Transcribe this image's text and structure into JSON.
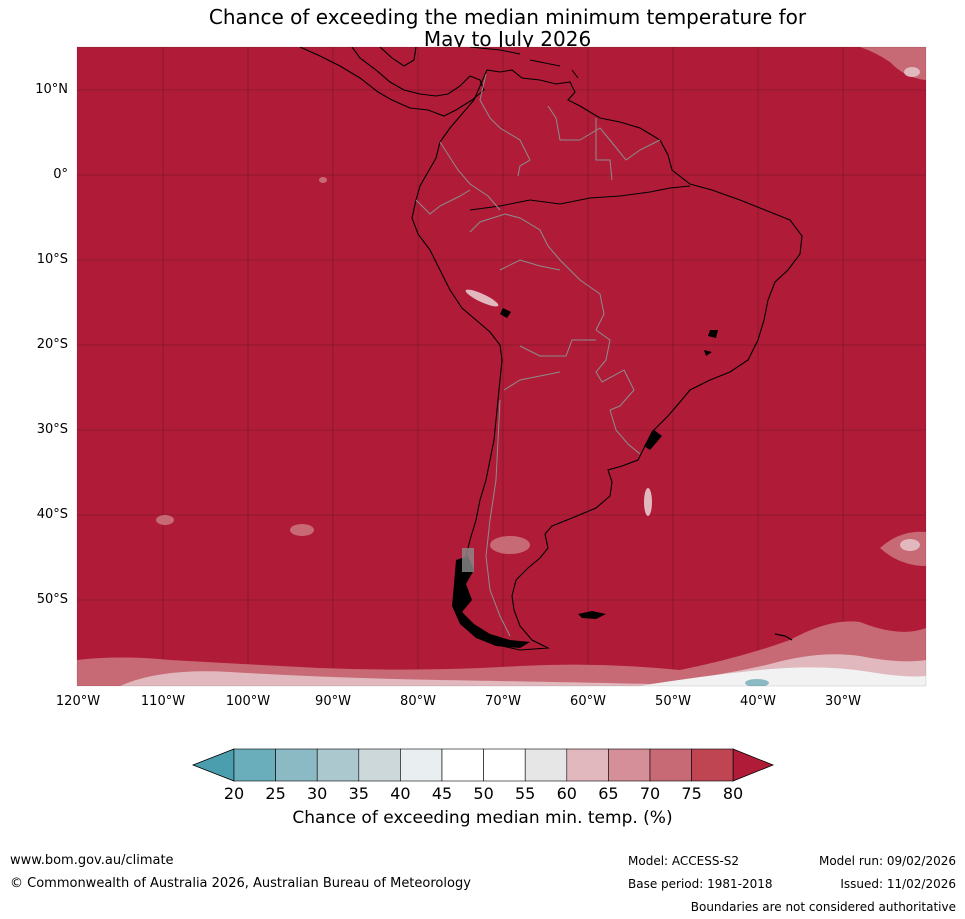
{
  "title": {
    "line1": "Chance of exceeding the median minimum temperature for",
    "line2": "May to July 2026"
  },
  "map": {
    "background_color": "#b01c38",
    "grid_color": "#5a0f1f",
    "coastline_color": "#000000",
    "border_color": "#8c8c8c",
    "lat_labels": [
      "10°N",
      "0°",
      "10°S",
      "20°S",
      "30°S",
      "40°S",
      "50°S"
    ],
    "lon_labels": [
      "120°W",
      "110°W",
      "100°W",
      "90°W",
      "80°W",
      "70°W",
      "60°W",
      "50°W",
      "40°W",
      "30°W"
    ]
  },
  "colorbar": {
    "ticks": [
      "20",
      "25",
      "30",
      "35",
      "40",
      "45",
      "50",
      "55",
      "60",
      "65",
      "70",
      "75",
      "80"
    ],
    "colors": [
      "#6aaebc",
      "#8bbac5",
      "#aac8ce",
      "#ccd8da",
      "#e9eff1",
      "#ffffff",
      "#ffffff",
      "#e6e6e6",
      "#e0b8bd",
      "#d58f98",
      "#c86a75",
      "#bf4553"
    ],
    "under_color": "#4a9eae",
    "over_color": "#b01c38",
    "label": "Chance of exceeding median min. temp. (%)"
  },
  "footer": {
    "url": "www.bom.gov.au/climate",
    "copyright": "© Commonwealth of Australia 2026, Australian Bureau of Meteorology",
    "model": "Model: ACCESS-S2",
    "model_run": "Model run: 09/02/2026",
    "base_period": "Base period: 1981-2018",
    "issued": "Issued: 11/02/2026",
    "disclaimer": "Boundaries are not considered authoritative"
  }
}
